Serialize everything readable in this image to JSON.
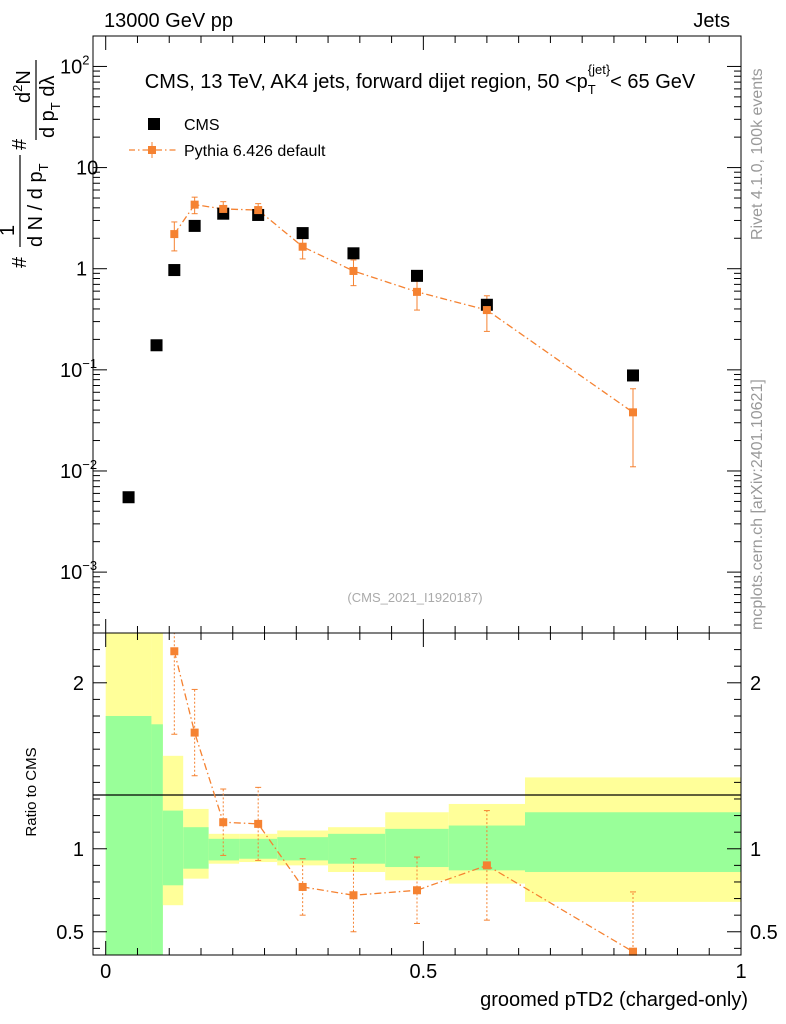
{
  "header": {
    "left": "13000 GeV pp",
    "right": "Jets"
  },
  "side_labels": {
    "rivet": "Rivet 4.1.0,  100k events",
    "mcplots": "mcplots.cern.ch [arXiv:2401.10621]"
  },
  "watermark": "(CMS_2021_I1920187)",
  "colors": {
    "data": "#000000",
    "mc": "#f58231",
    "band_inner": "#99ff99",
    "band_outer": "#ffff99"
  },
  "chart_data": [
    {
      "type": "scatter",
      "panel": "main",
      "title": "CMS, 13 TeV, AK4 jets, forward dijet region, 50 <p_T^{jet}< 65 GeV",
      "ylabel": "1/(dN/dp_T) d²N/(dp_T dλ)",
      "ylabel_parts": {
        "lead": "#",
        "one": "1",
        "frac_den": "d N / d p",
        "frac_den_sub": "T",
        "hash2": "#",
        "d2N": "d",
        "d2N_sup": "2",
        "d2N_tail": "N",
        "den2": "d p",
        "den2_sub": "T",
        "den2_tail": " dλ"
      },
      "yscale": "log",
      "ylim": [
        0.00025,
        200
      ],
      "xlim": [
        -0.02,
        1.0
      ],
      "yticks": [
        {
          "value": 0.001,
          "base": "10",
          "exp": "−3"
        },
        {
          "value": 0.01,
          "base": "10",
          "exp": "−2"
        },
        {
          "value": 0.1,
          "base": "10",
          "exp": "−1"
        },
        {
          "value": 1,
          "base": "1",
          "exp": ""
        },
        {
          "value": 10,
          "base": "10",
          "exp": ""
        },
        {
          "value": 100,
          "base": "10",
          "exp": "2"
        }
      ],
      "legend": [
        "CMS",
        "Pythia 6.426 default"
      ],
      "legend_position": "top-left",
      "series": [
        {
          "name": "CMS",
          "x": [
            0.036,
            0.08,
            0.108,
            0.14,
            0.185,
            0.24,
            0.31,
            0.39,
            0.49,
            0.6,
            0.83
          ],
          "y": [
            0.0055,
            0.175,
            0.97,
            2.65,
            3.5,
            3.4,
            2.25,
            1.42,
            0.85,
            0.44,
            0.088
          ]
        },
        {
          "name": "Pythia 6.426 default",
          "x": [
            0.108,
            0.14,
            0.185,
            0.24,
            0.31,
            0.39,
            0.49,
            0.6,
            0.83
          ],
          "y": [
            2.2,
            4.3,
            3.9,
            3.8,
            1.65,
            0.95,
            0.59,
            0.39,
            0.038
          ],
          "yerr": [
            0.7,
            0.8,
            0.7,
            0.6,
            0.4,
            0.27,
            0.2,
            0.15,
            0.027
          ]
        }
      ]
    },
    {
      "type": "line",
      "panel": "ratio",
      "ylabel": "Ratio to CMS",
      "xlabel": "groomed pTD2 (charged-only)",
      "ylim": [
        0.36,
        2.3
      ],
      "xlim": [
        -0.02,
        1.0
      ],
      "xticks": [
        {
          "value": 0,
          "label": "0"
        },
        {
          "value": 0.5,
          "label": "0.5"
        },
        {
          "value": 1,
          "label": "1"
        }
      ],
      "yticks": [
        {
          "value": 0.5,
          "label": "0.5"
        },
        {
          "value": 1,
          "label": "1"
        },
        {
          "value": 2,
          "label": "2"
        }
      ],
      "bands": {
        "edges": [
          0.0,
          0.072,
          0.09,
          0.122,
          0.162,
          0.21,
          0.27,
          0.35,
          0.44,
          0.54,
          0.66,
          1.0
        ],
        "inner_low": [
          0.36,
          0.36,
          0.78,
          0.88,
          0.93,
          0.94,
          0.93,
          0.91,
          0.89,
          0.87,
          0.86
        ],
        "inner_high": [
          1.8,
          1.75,
          1.23,
          1.13,
          1.06,
          1.06,
          1.07,
          1.09,
          1.12,
          1.14,
          1.22
        ],
        "outer_low": [
          0.36,
          0.55,
          0.66,
          0.82,
          0.91,
          0.92,
          0.9,
          0.86,
          0.81,
          0.79,
          0.68
        ],
        "outer_high": [
          2.3,
          2.3,
          1.56,
          1.24,
          1.09,
          1.09,
          1.11,
          1.13,
          1.22,
          1.27,
          1.43
        ]
      },
      "series": [
        {
          "name": "Pythia 6.426 default / CMS",
          "x": [
            0.108,
            0.14,
            0.185,
            0.24,
            0.31,
            0.39,
            0.49,
            0.6,
            0.83
          ],
          "y": [
            2.19,
            1.7,
            1.16,
            1.15,
            0.77,
            0.72,
            0.75,
            0.9,
            0.38
          ],
          "yerr": [
            0.5,
            0.26,
            0.2,
            0.22,
            0.17,
            0.22,
            0.2,
            0.33,
            0.36
          ]
        }
      ]
    }
  ]
}
